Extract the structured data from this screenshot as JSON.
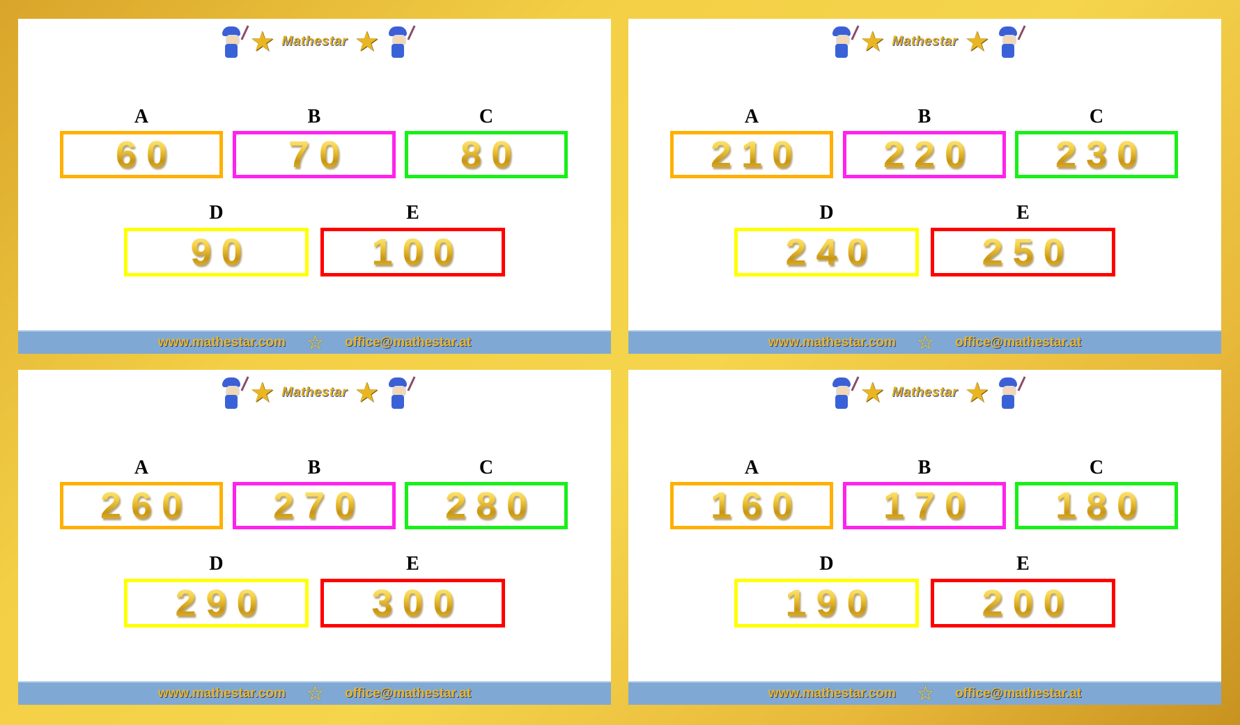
{
  "logo_text": "Mathestar",
  "footer": {
    "website": "www.mathestar.com",
    "email": "office@mathestar.at"
  },
  "box_colors": {
    "A": "#ffb000",
    "B": "#ff22ee",
    "C": "#18f018",
    "D": "#ffff00",
    "E": "#ff0000"
  },
  "panels": [
    {
      "boxes": [
        {
          "label": "A",
          "value": "60"
        },
        {
          "label": "B",
          "value": "70"
        },
        {
          "label": "C",
          "value": "80"
        },
        {
          "label": "D",
          "value": "90"
        },
        {
          "label": "E",
          "value": "100"
        }
      ]
    },
    {
      "boxes": [
        {
          "label": "A",
          "value": "210"
        },
        {
          "label": "B",
          "value": "220"
        },
        {
          "label": "C",
          "value": "230"
        },
        {
          "label": "D",
          "value": "240"
        },
        {
          "label": "E",
          "value": "250"
        }
      ]
    },
    {
      "boxes": [
        {
          "label": "A",
          "value": "260"
        },
        {
          "label": "B",
          "value": "270"
        },
        {
          "label": "C",
          "value": "280"
        },
        {
          "label": "D",
          "value": "290"
        },
        {
          "label": "E",
          "value": "300"
        }
      ]
    },
    {
      "boxes": [
        {
          "label": "A",
          "value": "160"
        },
        {
          "label": "B",
          "value": "170"
        },
        {
          "label": "C",
          "value": "180"
        },
        {
          "label": "D",
          "value": "190"
        },
        {
          "label": "E",
          "value": "200"
        }
      ]
    }
  ]
}
